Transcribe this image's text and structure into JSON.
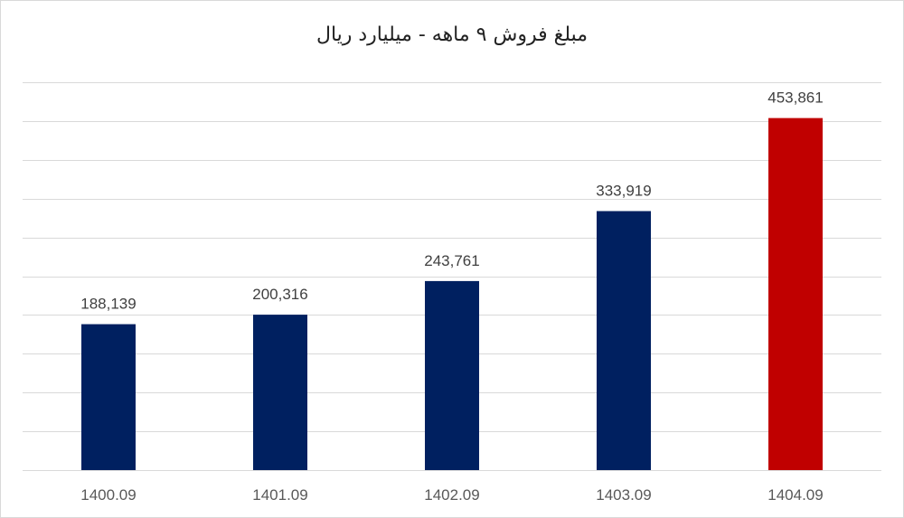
{
  "chart_data": {
    "type": "bar",
    "title": "مبلغ فروش ۹ ماهه - میلیارد ریال",
    "categories": [
      "1400.09",
      "1401.09",
      "1402.09",
      "1403.09",
      "1404.09"
    ],
    "values": [
      188139,
      200316,
      243761,
      333919,
      453861
    ],
    "data_labels": [
      "188,139",
      "200,316",
      "243,761",
      "333,919",
      "453,861"
    ],
    "bar_colors": [
      "#002060",
      "#002060",
      "#002060",
      "#002060",
      "#C00000"
    ],
    "ylim": [
      0,
      500000
    ],
    "ytick_step": 50000,
    "show_y_tick_labels": false,
    "grid": true,
    "gridline_color": "#d9d9d9",
    "legend": "none"
  }
}
